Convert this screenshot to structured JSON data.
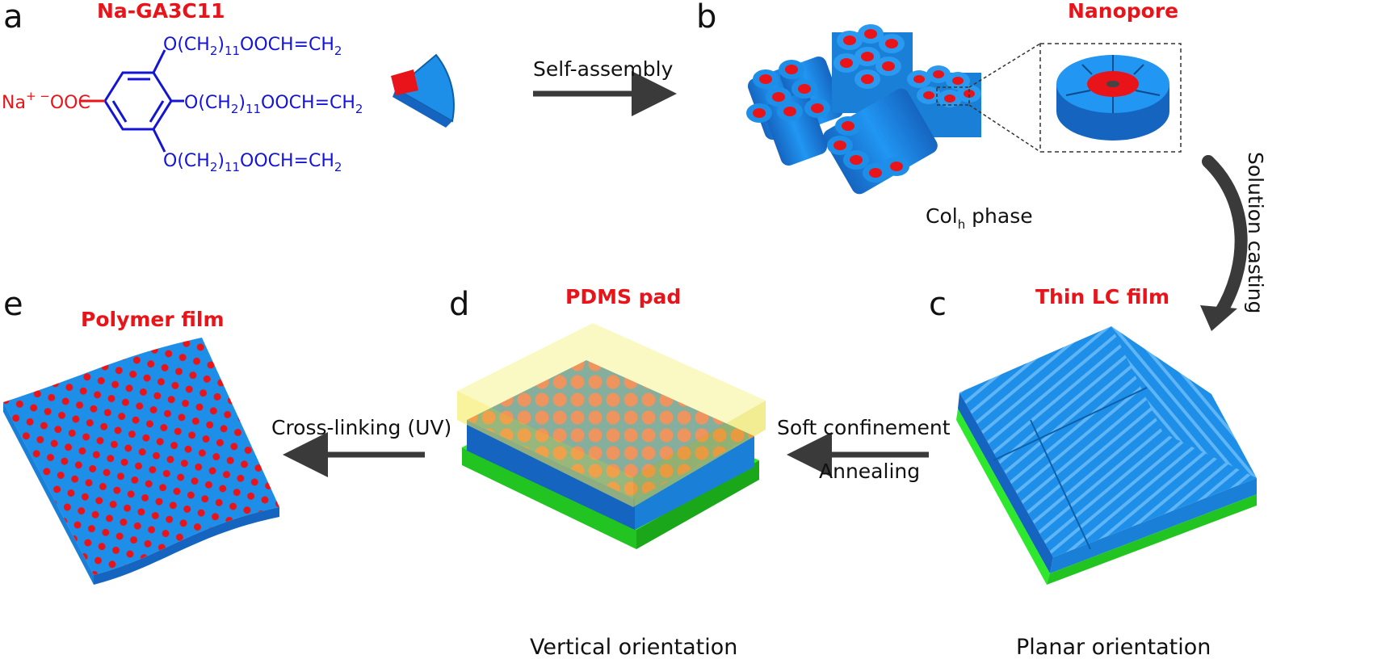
{
  "panels": {
    "a": {
      "letter": "a",
      "title": "Na-GA3C11"
    },
    "b": {
      "letter": "b",
      "title": "Nanopore",
      "phase_main": "Col",
      "phase_sub": "h",
      "phase_rest": " phase"
    },
    "c": {
      "letter": "c",
      "title": "Thin LC film",
      "caption": "Planar orientation"
    },
    "d": {
      "letter": "d",
      "title": "PDMS pad",
      "caption": "Vertical orientation"
    },
    "e": {
      "letter": "e",
      "title": "Polymer film"
    }
  },
  "chemistry": {
    "cation": "Na",
    "cation_sup": "+ −",
    "carboxylate": "OOC",
    "chain_prefix": "O(CH",
    "chain_sub2": "2",
    "chain_close": ")",
    "chain_sub11": "11",
    "chain_suffix": "OOCH=CH",
    "chain_end_sub": "2"
  },
  "arrows": {
    "self_assembly": "Self-assembly",
    "solution_casting": "Solution casting",
    "soft_confinement": "Soft confinement",
    "annealing": "Annealing",
    "cross_linking": "Cross-linking (UV)"
  },
  "colors": {
    "column_blue": "#1e8fe8",
    "pore_red": "#e8141a",
    "chem_blue": "#1414d4",
    "substrate_green": "#2ee82e",
    "pdms_yellow": "#f5f07a",
    "arrow_gray": "#3a3a3a"
  }
}
